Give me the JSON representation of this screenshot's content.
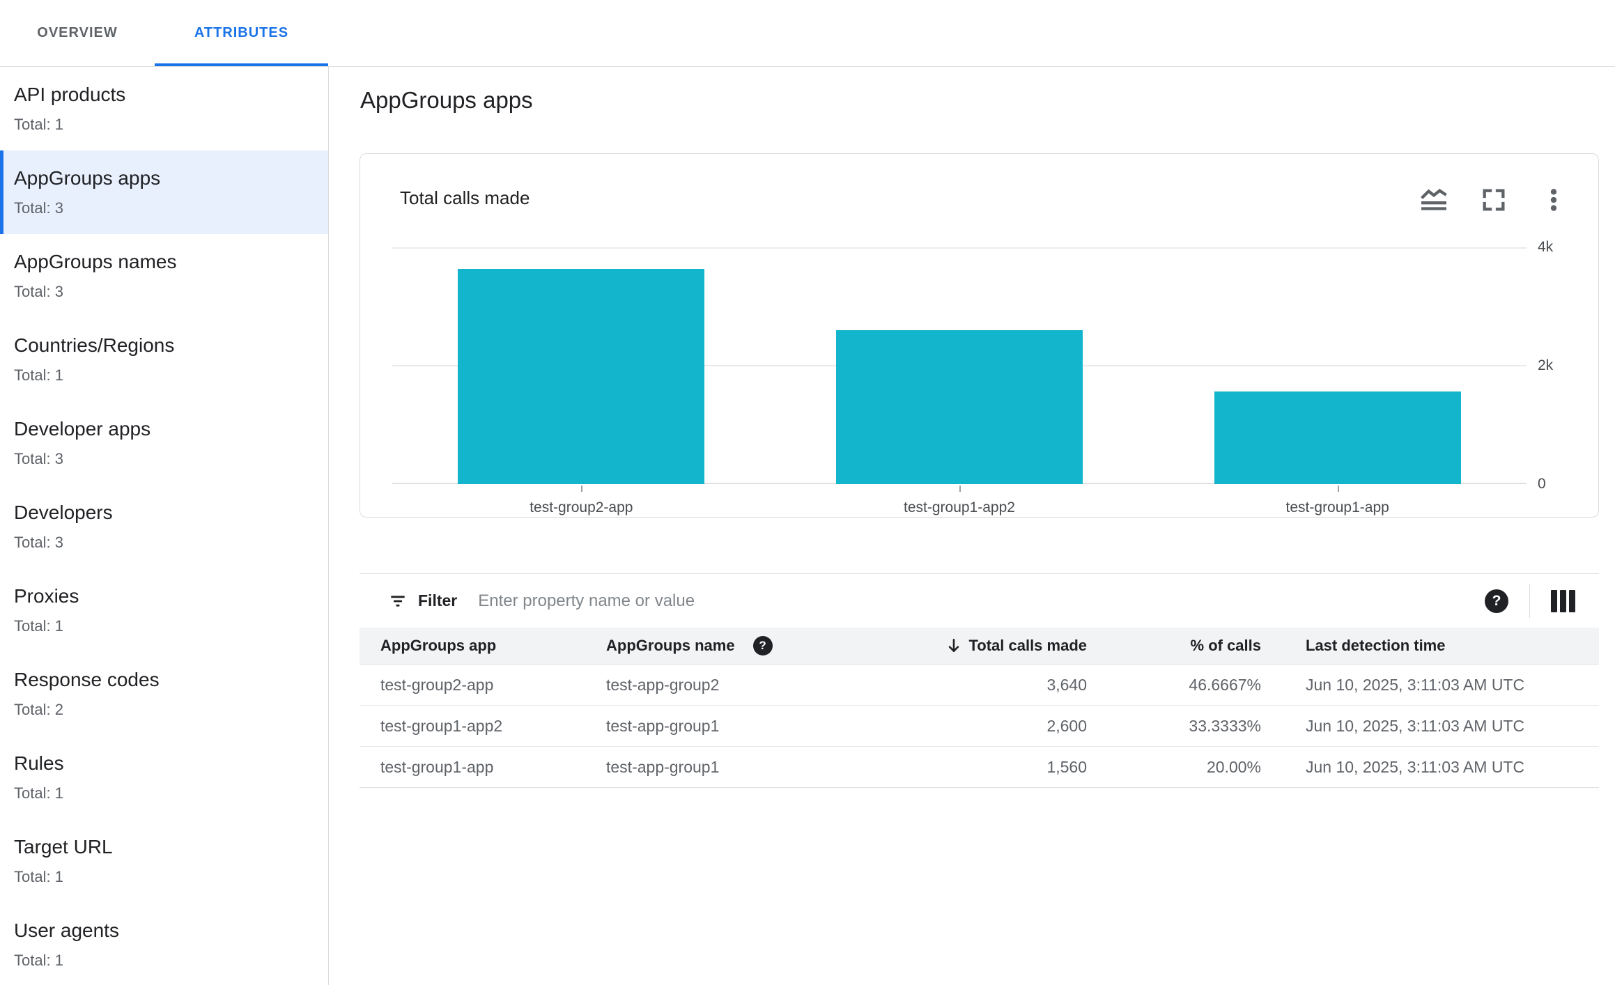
{
  "tabs": [
    {
      "label": "OVERVIEW",
      "active": false
    },
    {
      "label": "ATTRIBUTES",
      "active": true
    }
  ],
  "sidebar": {
    "items": [
      {
        "label": "API products",
        "total": "Total: 1"
      },
      {
        "label": "AppGroups apps",
        "total": "Total: 3"
      },
      {
        "label": "AppGroups names",
        "total": "Total: 3"
      },
      {
        "label": "Countries/Regions",
        "total": "Total: 1"
      },
      {
        "label": "Developer apps",
        "total": "Total: 3"
      },
      {
        "label": "Developers",
        "total": "Total: 3"
      },
      {
        "label": "Proxies",
        "total": "Total: 1"
      },
      {
        "label": "Response codes",
        "total": "Total: 2"
      },
      {
        "label": "Rules",
        "total": "Total: 1"
      },
      {
        "label": "Target URL",
        "total": "Total: 1"
      },
      {
        "label": "User agents",
        "total": "Total: 1"
      }
    ],
    "selected": "AppGroups apps"
  },
  "main": {
    "title": "AppGroups apps"
  },
  "card": {
    "title": "Total calls made",
    "icons": [
      "area-chart",
      "fullscreen",
      "more-vert"
    ]
  },
  "filter": {
    "label": "Filter",
    "placeholder": "Enter property name or value"
  },
  "table": {
    "headers": {
      "app": "AppGroups app",
      "name": "AppGroups name",
      "calls": "Total calls made",
      "pct": "% of calls",
      "time": "Last detection time"
    },
    "sort": {
      "column": "Total calls made",
      "direction": "desc"
    },
    "rows": [
      {
        "app": "test-group2-app",
        "name": "test-app-group2",
        "calls": "3,640",
        "pct": "46.6667%",
        "time": "Jun 10, 2025, 3:11:03 AM UTC"
      },
      {
        "app": "test-group1-app2",
        "name": "test-app-group1",
        "calls": "2,600",
        "pct": "33.3333%",
        "time": "Jun 10, 2025, 3:11:03 AM UTC"
      },
      {
        "app": "test-group1-app",
        "name": "test-app-group1",
        "calls": "1,560",
        "pct": "20.00%",
        "time": "Jun 10, 2025, 3:11:03 AM UTC"
      }
    ]
  },
  "chart_data": {
    "type": "bar",
    "title": "Total calls made",
    "categories": [
      "test-group2-app",
      "test-group1-app2",
      "test-group1-app"
    ],
    "values": [
      3640,
      2600,
      1560
    ],
    "ylim": [
      0,
      4000
    ],
    "yticks": [
      "4k",
      "2k",
      "0"
    ],
    "xlabel": "",
    "ylabel": "",
    "grid": true,
    "legend": "none",
    "bar_color": "#12b5cb"
  },
  "colors": {
    "accent": "#1a73e8",
    "bar": "#12b5cb",
    "selected_bg": "#e8f0fe",
    "text_dark": "#202124",
    "text_gray": "#5f6368",
    "border": "#dadce0"
  }
}
